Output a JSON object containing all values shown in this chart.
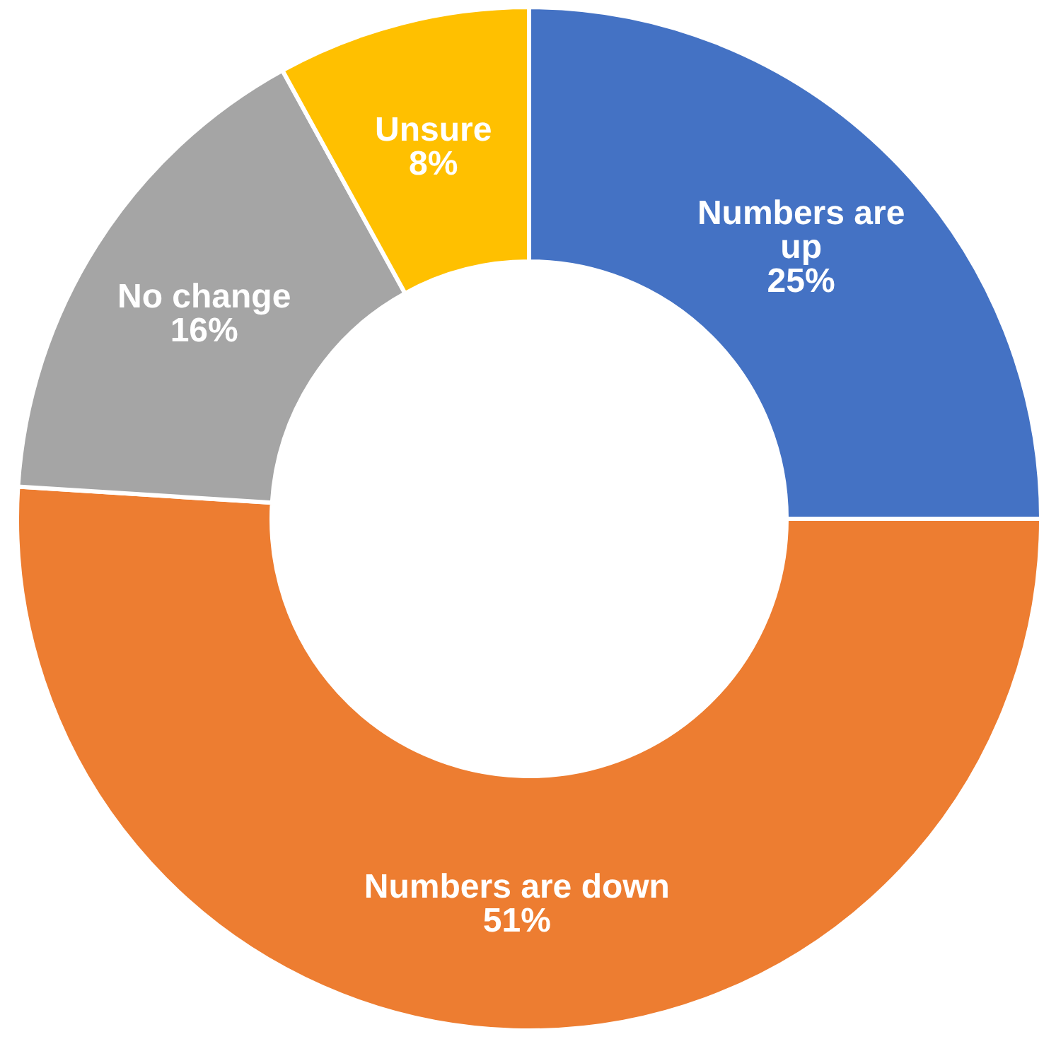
{
  "chart_data": {
    "type": "donut",
    "categories": [
      "Numbers are up",
      "Numbers are down",
      "No change",
      "Unsure"
    ],
    "values": [
      25,
      51,
      16,
      8
    ],
    "colors": [
      "#4472c4",
      "#ed7d31",
      "#a5a5a5",
      "#ffc000"
    ],
    "value_labels": [
      "25%",
      "51%",
      "16%",
      "8%"
    ],
    "legend": false
  }
}
